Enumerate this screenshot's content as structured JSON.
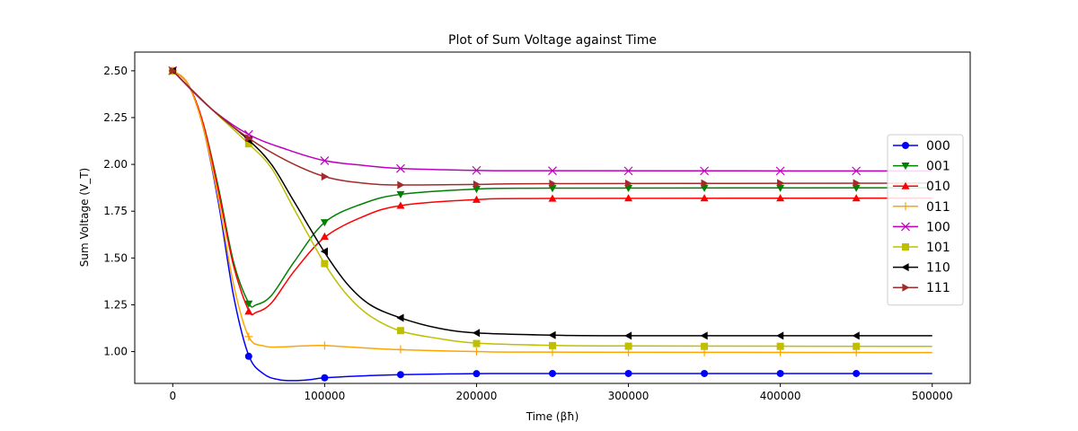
{
  "chart_data": {
    "type": "line",
    "title": "Plot of Sum Voltage against Time",
    "xlabel": "Time (βħ)",
    "ylabel": "Sum Voltage (V_T)",
    "xlim": [
      -25000,
      525000
    ],
    "ylim": [
      0.83,
      2.6
    ],
    "xticks": [
      0,
      100000,
      200000,
      300000,
      400000,
      500000
    ],
    "xtick_labels": [
      "0",
      "100000",
      "200000",
      "300000",
      "400000",
      "500000"
    ],
    "yticks": [
      1.0,
      1.25,
      1.5,
      1.75,
      2.0,
      2.25,
      2.5
    ],
    "ytick_labels": [
      "1.00",
      "1.25",
      "1.50",
      "1.75",
      "2.00",
      "2.25",
      "2.50"
    ],
    "grid": false,
    "legend": "center-right",
    "series": [
      {
        "name": "000",
        "color": "#0000ff",
        "marker": "circle",
        "curve": [
          [
            0,
            2.5
          ],
          [
            10000,
            2.43
          ],
          [
            20000,
            2.2
          ],
          [
            30000,
            1.8
          ],
          [
            40000,
            1.3
          ],
          [
            50000,
            0.98
          ],
          [
            60000,
            0.88
          ],
          [
            70000,
            0.85
          ],
          [
            80000,
            0.845
          ],
          [
            90000,
            0.85
          ],
          [
            100000,
            0.86
          ],
          [
            125000,
            0.87
          ],
          [
            150000,
            0.877
          ],
          [
            200000,
            0.882
          ],
          [
            250000,
            0.883
          ],
          [
            500000,
            0.883
          ]
        ],
        "markers": [
          [
            0,
            2.5
          ],
          [
            50000,
            0.975
          ],
          [
            100000,
            0.86
          ],
          [
            150000,
            0.877
          ],
          [
            200000,
            0.882
          ],
          [
            250000,
            0.883
          ],
          [
            300000,
            0.883
          ],
          [
            350000,
            0.883
          ],
          [
            400000,
            0.883
          ],
          [
            450000,
            0.883
          ]
        ]
      },
      {
        "name": "001",
        "color": "#008000",
        "marker": "triangle-down",
        "curve": [
          [
            0,
            2.5
          ],
          [
            10000,
            2.43
          ],
          [
            20000,
            2.22
          ],
          [
            30000,
            1.88
          ],
          [
            40000,
            1.48
          ],
          [
            50000,
            1.26
          ],
          [
            55000,
            1.25
          ],
          [
            65000,
            1.3
          ],
          [
            80000,
            1.48
          ],
          [
            100000,
            1.69
          ],
          [
            125000,
            1.79
          ],
          [
            150000,
            1.84
          ],
          [
            200000,
            1.868
          ],
          [
            250000,
            1.873
          ],
          [
            500000,
            1.875
          ]
        ],
        "markers": [
          [
            0,
            2.5
          ],
          [
            50000,
            1.255
          ],
          [
            100000,
            1.69
          ],
          [
            150000,
            1.84
          ],
          [
            200000,
            1.868
          ],
          [
            250000,
            1.872
          ],
          [
            300000,
            1.873
          ],
          [
            350000,
            1.874
          ],
          [
            400000,
            1.874
          ],
          [
            450000,
            1.874
          ]
        ]
      },
      {
        "name": "010",
        "color": "#ff0000",
        "marker": "triangle-up",
        "curve": [
          [
            0,
            2.5
          ],
          [
            10000,
            2.43
          ],
          [
            20000,
            2.22
          ],
          [
            30000,
            1.86
          ],
          [
            40000,
            1.46
          ],
          [
            50000,
            1.22
          ],
          [
            55000,
            1.21
          ],
          [
            65000,
            1.26
          ],
          [
            80000,
            1.43
          ],
          [
            100000,
            1.61
          ],
          [
            125000,
            1.72
          ],
          [
            150000,
            1.78
          ],
          [
            200000,
            1.812
          ],
          [
            250000,
            1.818
          ],
          [
            500000,
            1.82
          ]
        ],
        "markers": [
          [
            0,
            2.5
          ],
          [
            50000,
            1.215
          ],
          [
            100000,
            1.615
          ],
          [
            150000,
            1.78
          ],
          [
            200000,
            1.812
          ],
          [
            250000,
            1.818
          ],
          [
            300000,
            1.82
          ],
          [
            350000,
            1.82
          ],
          [
            400000,
            1.82
          ],
          [
            450000,
            1.82
          ]
        ]
      },
      {
        "name": "011",
        "color": "#ffa500",
        "marker": "plus",
        "curve": [
          [
            0,
            2.5
          ],
          [
            10000,
            2.43
          ],
          [
            20000,
            2.2
          ],
          [
            30000,
            1.82
          ],
          [
            40000,
            1.36
          ],
          [
            50000,
            1.08
          ],
          [
            60000,
            1.03
          ],
          [
            70000,
            1.025
          ],
          [
            85000,
            1.03
          ],
          [
            100000,
            1.032
          ],
          [
            125000,
            1.02
          ],
          [
            150000,
            1.01
          ],
          [
            200000,
            1.0
          ],
          [
            250000,
            0.997
          ],
          [
            500000,
            0.995
          ]
        ],
        "markers": [
          [
            0,
            2.5
          ],
          [
            50000,
            1.08
          ],
          [
            100000,
            1.032
          ],
          [
            150000,
            1.012
          ],
          [
            200000,
            1.0
          ],
          [
            250000,
            0.997
          ],
          [
            300000,
            0.996
          ],
          [
            350000,
            0.996
          ],
          [
            400000,
            0.996
          ],
          [
            450000,
            0.996
          ]
        ]
      },
      {
        "name": "100",
        "color": "#bf00bf",
        "marker": "x",
        "curve": [
          [
            0,
            2.5
          ],
          [
            25000,
            2.3
          ],
          [
            50000,
            2.16
          ],
          [
            75000,
            2.08
          ],
          [
            100000,
            2.02
          ],
          [
            125000,
            1.995
          ],
          [
            150000,
            1.978
          ],
          [
            200000,
            1.968
          ],
          [
            250000,
            1.966
          ],
          [
            500000,
            1.965
          ]
        ],
        "markers": [
          [
            0,
            2.5
          ],
          [
            50000,
            2.16
          ],
          [
            100000,
            2.02
          ],
          [
            150000,
            1.978
          ],
          [
            200000,
            1.968
          ],
          [
            250000,
            1.966
          ],
          [
            300000,
            1.965
          ],
          [
            350000,
            1.965
          ],
          [
            400000,
            1.965
          ],
          [
            450000,
            1.965
          ]
        ]
      },
      {
        "name": "101",
        "color": "#bfbf00",
        "marker": "square",
        "curve": [
          [
            0,
            2.5
          ],
          [
            25000,
            2.3
          ],
          [
            50000,
            2.11
          ],
          [
            65000,
            1.98
          ],
          [
            80000,
            1.76
          ],
          [
            100000,
            1.47
          ],
          [
            115000,
            1.3
          ],
          [
            130000,
            1.19
          ],
          [
            150000,
            1.11
          ],
          [
            175000,
            1.07
          ],
          [
            200000,
            1.045
          ],
          [
            250000,
            1.033
          ],
          [
            300000,
            1.03
          ],
          [
            500000,
            1.028
          ]
        ],
        "markers": [
          [
            0,
            2.5
          ],
          [
            50000,
            2.11
          ],
          [
            100000,
            1.47
          ],
          [
            150000,
            1.112
          ],
          [
            200000,
            1.043
          ],
          [
            250000,
            1.032
          ],
          [
            300000,
            1.029
          ],
          [
            350000,
            1.028
          ],
          [
            400000,
            1.028
          ],
          [
            450000,
            1.028
          ]
        ]
      },
      {
        "name": "110",
        "color": "#000000",
        "marker": "triangle-left",
        "curve": [
          [
            0,
            2.5
          ],
          [
            25000,
            2.3
          ],
          [
            50000,
            2.13
          ],
          [
            65000,
            2.0
          ],
          [
            80000,
            1.8
          ],
          [
            100000,
            1.53
          ],
          [
            115000,
            1.36
          ],
          [
            130000,
            1.25
          ],
          [
            150000,
            1.18
          ],
          [
            175000,
            1.125
          ],
          [
            200000,
            1.1
          ],
          [
            250000,
            1.088
          ],
          [
            300000,
            1.085
          ],
          [
            500000,
            1.085
          ]
        ],
        "markers": [
          [
            0,
            2.5
          ],
          [
            50000,
            2.13
          ],
          [
            100000,
            1.535
          ],
          [
            150000,
            1.18
          ],
          [
            200000,
            1.1
          ],
          [
            250000,
            1.088
          ],
          [
            300000,
            1.085
          ],
          [
            350000,
            1.085
          ],
          [
            400000,
            1.085
          ],
          [
            450000,
            1.085
          ]
        ]
      },
      {
        "name": "111",
        "color": "#a52a2a",
        "marker": "triangle-right",
        "curve": [
          [
            0,
            2.5
          ],
          [
            25000,
            2.3
          ],
          [
            50000,
            2.14
          ],
          [
            75000,
            2.02
          ],
          [
            100000,
            1.935
          ],
          [
            125000,
            1.9
          ],
          [
            150000,
            1.89
          ],
          [
            200000,
            1.893
          ],
          [
            250000,
            1.897
          ],
          [
            500000,
            1.9
          ]
        ],
        "markers": [
          [
            0,
            2.5
          ],
          [
            50000,
            2.14
          ],
          [
            100000,
            1.935
          ],
          [
            150000,
            1.89
          ],
          [
            200000,
            1.893
          ],
          [
            250000,
            1.897
          ],
          [
            300000,
            1.898
          ],
          [
            350000,
            1.899
          ],
          [
            400000,
            1.9
          ],
          [
            450000,
            1.9
          ]
        ]
      }
    ]
  }
}
